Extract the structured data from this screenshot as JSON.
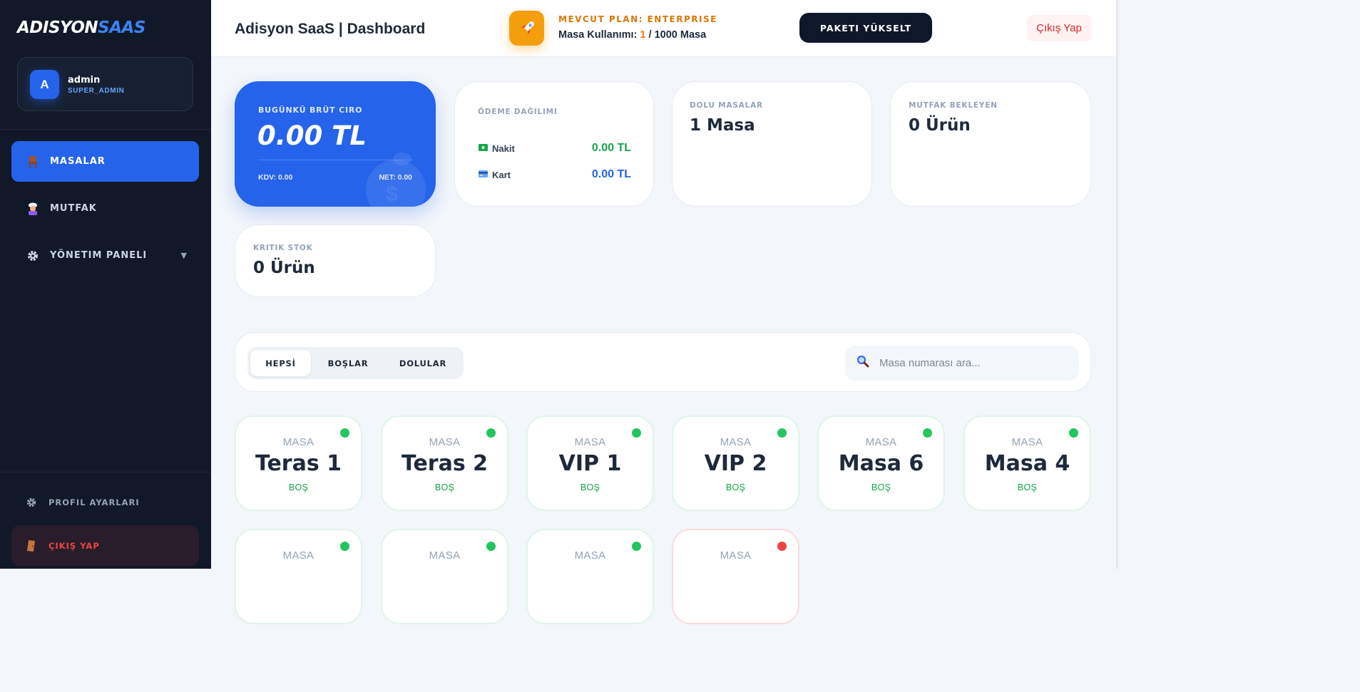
{
  "sidebar": {
    "logo_part1": "ADISYON",
    "logo_part2": "SAAS",
    "user": {
      "initial": "A",
      "name": "admin",
      "role": "SUPER_ADMIN"
    },
    "nav": [
      {
        "label": "MASALAR",
        "icon": "chair-icon",
        "active": true
      },
      {
        "label": "MUTFAK",
        "icon": "chef-icon",
        "active": false
      },
      {
        "label": "YÖNETIM PANELI",
        "icon": "gear-icon",
        "active": false
      }
    ],
    "profile_label": "PROFIL AYARLARI",
    "logout_label": "ÇIKIŞ YAP"
  },
  "header": {
    "title": "Adisyon SaaS | Dashboard",
    "plan_label": "MEVCUT PLAN: ENTERPRISE",
    "usage_prefix": "Masa Kullanımı:",
    "usage_current": "1",
    "usage_suffix": "/ 1000 Masa",
    "upgrade_label": "PAKETI YÜKSELT",
    "logout_label": "Çıkış Yap"
  },
  "stats": {
    "ciro": {
      "label": "BUGÜNKÜ BRÜT CIRO",
      "value": "0.00 TL",
      "kdv": "KDV: 0.00",
      "net": "NET: 0.00"
    },
    "odeme": {
      "label": "ÖDEME DAĞILIMI",
      "nakit_label": "Nakit",
      "nakit_value": "0.00 TL",
      "kart_label": "Kart",
      "kart_value": "0.00 TL"
    },
    "dolu": {
      "label": "DOLU MASALAR",
      "value": "1 Masa"
    },
    "mutfak": {
      "label": "MUTFAK BEKLEYEN",
      "value": "0 Ürün"
    },
    "kritik": {
      "label": "KRITIK STOK",
      "value": "0 Ürün"
    }
  },
  "filters": {
    "tabs": [
      "HEPSİ",
      "BOŞLAR",
      "DOLULAR"
    ],
    "active_tab": "HEPSİ",
    "search_placeholder": "Masa numarası ara..."
  },
  "tables": [
    {
      "label": "MASA",
      "name": "Teras 1",
      "status": "BOŞ",
      "state": "empty"
    },
    {
      "label": "MASA",
      "name": "Teras 2",
      "status": "BOŞ",
      "state": "empty"
    },
    {
      "label": "MASA",
      "name": "VIP 1",
      "status": "BOŞ",
      "state": "empty"
    },
    {
      "label": "MASA",
      "name": "VIP 2",
      "status": "BOŞ",
      "state": "empty"
    },
    {
      "label": "MASA",
      "name": "Masa 6",
      "status": "BOŞ",
      "state": "empty"
    },
    {
      "label": "MASA",
      "name": "Masa 4",
      "status": "BOŞ",
      "state": "empty"
    },
    {
      "label": "MASA",
      "state": "empty"
    },
    {
      "label": "MASA",
      "state": "empty"
    },
    {
      "label": "MASA",
      "state": "empty"
    },
    {
      "label": "MASA",
      "state": "occupied"
    }
  ],
  "colors": {
    "sidebar_bg": "#111827",
    "accent": "#2563eb",
    "plan_accent": "#f59e0b",
    "status_empty": "#22c55e",
    "status_occupied": "#ef4444"
  }
}
